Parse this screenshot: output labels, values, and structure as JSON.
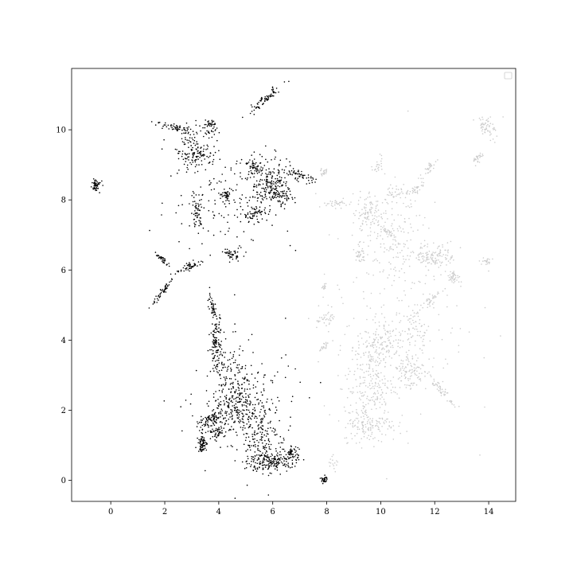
{
  "chart_data": {
    "type": "scatter",
    "title": "",
    "xlabel": "",
    "ylabel": "",
    "xlim": [
      -1.45,
      15.0
    ],
    "ylim": [
      -0.6,
      11.75
    ],
    "x_ticks": [
      0,
      2,
      4,
      6,
      8,
      10,
      12,
      14
    ],
    "y_ticks": [
      0,
      2,
      4,
      6,
      8,
      10
    ],
    "grid": false,
    "legend": {
      "position": "top-right",
      "entries": []
    },
    "series": [
      {
        "color": "#000000",
        "clusters": [
          {
            "cx": -0.55,
            "cy": 8.4,
            "sx": 0.1,
            "sy": 0.08,
            "n": 50,
            "angle": -0.6
          },
          {
            "cx": 2.4,
            "cy": 10.05,
            "sx": 0.35,
            "sy": 0.05,
            "n": 60,
            "angle": -0.15
          },
          {
            "cx": 3.2,
            "cy": 9.5,
            "sx": 0.4,
            "sy": 0.35,
            "n": 110,
            "angle": 0
          },
          {
            "cx": 3.65,
            "cy": 10.1,
            "sx": 0.12,
            "sy": 0.12,
            "n": 40,
            "angle": 0
          },
          {
            "cx": 3.2,
            "cy": 9.25,
            "sx": 0.25,
            "sy": 0.08,
            "n": 40,
            "angle": 0
          },
          {
            "cx": 5.7,
            "cy": 10.85,
            "sx": 0.4,
            "sy": 0.06,
            "n": 70,
            "angle": 0.6
          },
          {
            "cx": 5.3,
            "cy": 8.95,
            "sx": 0.2,
            "sy": 0.08,
            "n": 50,
            "angle": -0.4
          },
          {
            "cx": 5.9,
            "cy": 8.5,
            "sx": 0.4,
            "sy": 0.35,
            "n": 170,
            "angle": 0
          },
          {
            "cx": 6.2,
            "cy": 8.1,
            "sx": 0.3,
            "sy": 0.15,
            "n": 80,
            "angle": 0
          },
          {
            "cx": 7.0,
            "cy": 8.7,
            "sx": 0.3,
            "sy": 0.06,
            "n": 50,
            "angle": -0.3
          },
          {
            "cx": 4.3,
            "cy": 8.15,
            "sx": 0.12,
            "sy": 0.08,
            "n": 40,
            "angle": 0.5
          },
          {
            "cx": 3.2,
            "cy": 7.7,
            "sx": 0.12,
            "sy": 0.25,
            "n": 60,
            "angle": 0
          },
          {
            "cx": 4.5,
            "cy": 8.0,
            "sx": 1.2,
            "sy": 0.8,
            "n": 140,
            "angle": 0
          },
          {
            "cx": 3.0,
            "cy": 6.12,
            "sx": 0.3,
            "sy": 0.05,
            "n": 50,
            "angle": 0.3
          },
          {
            "cx": 1.9,
            "cy": 6.3,
            "sx": 0.15,
            "sy": 0.04,
            "n": 30,
            "angle": -0.5
          },
          {
            "cx": 1.95,
            "cy": 5.4,
            "sx": 0.3,
            "sy": 0.04,
            "n": 50,
            "angle": 0.75
          },
          {
            "cx": 4.5,
            "cy": 6.45,
            "sx": 0.12,
            "sy": 0.08,
            "n": 40,
            "angle": 0
          },
          {
            "cx": 5.3,
            "cy": 7.6,
            "sx": 0.2,
            "sy": 0.12,
            "n": 50,
            "angle": 0
          },
          {
            "cx": 3.9,
            "cy": 3.9,
            "sx": 0.1,
            "sy": 0.4,
            "n": 120,
            "angle": 0
          },
          {
            "cx": 3.8,
            "cy": 4.85,
            "sx": 0.05,
            "sy": 0.2,
            "n": 40,
            "angle": 0.3
          },
          {
            "cx": 4.5,
            "cy": 2.8,
            "sx": 0.4,
            "sy": 0.6,
            "n": 150,
            "angle": 0
          },
          {
            "cx": 4.8,
            "cy": 2.1,
            "sx": 0.6,
            "sy": 0.3,
            "n": 180,
            "angle": 0
          },
          {
            "cx": 3.7,
            "cy": 1.7,
            "sx": 0.25,
            "sy": 0.1,
            "n": 80,
            "angle": 0.4
          },
          {
            "cx": 3.4,
            "cy": 1.05,
            "sx": 0.08,
            "sy": 0.12,
            "n": 70,
            "angle": 0
          },
          {
            "cx": 3.9,
            "cy": 1.35,
            "sx": 0.15,
            "sy": 0.08,
            "n": 40,
            "angle": 0
          },
          {
            "cx": 5.5,
            "cy": 1.2,
            "sx": 0.35,
            "sy": 0.5,
            "n": 150,
            "angle": 0
          },
          {
            "cx": 6.0,
            "cy": 0.55,
            "sx": 0.45,
            "sy": 0.15,
            "n": 180,
            "angle": 0
          },
          {
            "cx": 6.7,
            "cy": 0.8,
            "sx": 0.12,
            "sy": 0.08,
            "n": 40,
            "angle": 0
          },
          {
            "cx": 7.9,
            "cy": 0.03,
            "sx": 0.06,
            "sy": 0.05,
            "n": 30,
            "angle": 0
          },
          {
            "cx": 5.0,
            "cy": 1.9,
            "sx": 1.0,
            "sy": 1.0,
            "n": 140,
            "angle": 0
          }
        ]
      },
      {
        "color": "#cccccc",
        "clusters": [
          {
            "cx": 13.95,
            "cy": 10.1,
            "sx": 0.2,
            "sy": 0.12,
            "n": 60,
            "angle": -0.5
          },
          {
            "cx": 13.6,
            "cy": 9.2,
            "sx": 0.15,
            "sy": 0.05,
            "n": 30,
            "angle": 0.6
          },
          {
            "cx": 11.8,
            "cy": 8.9,
            "sx": 0.15,
            "sy": 0.06,
            "n": 30,
            "angle": 0.7
          },
          {
            "cx": 9.5,
            "cy": 7.6,
            "sx": 0.25,
            "sy": 0.25,
            "n": 80,
            "angle": 0
          },
          {
            "cx": 10.3,
            "cy": 7.2,
            "sx": 0.6,
            "sy": 0.6,
            "n": 140,
            "angle": 0
          },
          {
            "cx": 10.3,
            "cy": 7.05,
            "sx": 0.15,
            "sy": 0.06,
            "n": 30,
            "angle": -0.6
          },
          {
            "cx": 10.6,
            "cy": 8.2,
            "sx": 0.2,
            "sy": 0.1,
            "n": 30,
            "angle": 0
          },
          {
            "cx": 11.3,
            "cy": 8.3,
            "sx": 0.2,
            "sy": 0.06,
            "n": 30,
            "angle": 0.5
          },
          {
            "cx": 9.9,
            "cy": 9.05,
            "sx": 0.1,
            "sy": 0.15,
            "n": 20,
            "angle": 0
          },
          {
            "cx": 12.0,
            "cy": 6.4,
            "sx": 0.35,
            "sy": 0.15,
            "n": 110,
            "angle": 0
          },
          {
            "cx": 12.7,
            "cy": 5.8,
            "sx": 0.12,
            "sy": 0.08,
            "n": 40,
            "angle": 0
          },
          {
            "cx": 13.95,
            "cy": 6.25,
            "sx": 0.1,
            "sy": 0.05,
            "n": 20,
            "angle": 0
          },
          {
            "cx": 9.2,
            "cy": 6.4,
            "sx": 0.1,
            "sy": 0.1,
            "n": 30,
            "angle": 0
          },
          {
            "cx": 8.4,
            "cy": 7.9,
            "sx": 0.25,
            "sy": 0.06,
            "n": 30,
            "angle": 0
          },
          {
            "cx": 7.9,
            "cy": 8.8,
            "sx": 0.06,
            "sy": 0.06,
            "n": 20,
            "angle": 0
          },
          {
            "cx": 8.0,
            "cy": 4.6,
            "sx": 0.2,
            "sy": 0.08,
            "n": 30,
            "angle": 0.4
          },
          {
            "cx": 7.9,
            "cy": 3.8,
            "sx": 0.12,
            "sy": 0.05,
            "n": 20,
            "angle": 0.7
          },
          {
            "cx": 7.9,
            "cy": 5.5,
            "sx": 0.05,
            "sy": 0.05,
            "n": 12,
            "angle": 0
          },
          {
            "cx": 9.9,
            "cy": 3.8,
            "sx": 0.4,
            "sy": 0.35,
            "n": 150,
            "angle": 0
          },
          {
            "cx": 9.6,
            "cy": 2.7,
            "sx": 0.45,
            "sy": 0.55,
            "n": 180,
            "angle": 0
          },
          {
            "cx": 9.6,
            "cy": 1.6,
            "sx": 0.5,
            "sy": 0.25,
            "n": 140,
            "angle": 0
          },
          {
            "cx": 11.0,
            "cy": 3.1,
            "sx": 0.3,
            "sy": 0.25,
            "n": 90,
            "angle": 0
          },
          {
            "cx": 11.3,
            "cy": 4.3,
            "sx": 0.25,
            "sy": 0.3,
            "n": 60,
            "angle": 0
          },
          {
            "cx": 12.2,
            "cy": 2.6,
            "sx": 0.3,
            "sy": 0.06,
            "n": 50,
            "angle": -0.7
          },
          {
            "cx": 11.8,
            "cy": 5.1,
            "sx": 0.2,
            "sy": 0.06,
            "n": 30,
            "angle": 0.7
          },
          {
            "cx": 8.3,
            "cy": 0.5,
            "sx": 0.1,
            "sy": 0.1,
            "n": 15,
            "angle": 0
          },
          {
            "cx": 10.5,
            "cy": 4.8,
            "sx": 1.4,
            "sy": 1.6,
            "n": 220,
            "angle": 0
          }
        ]
      }
    ]
  }
}
